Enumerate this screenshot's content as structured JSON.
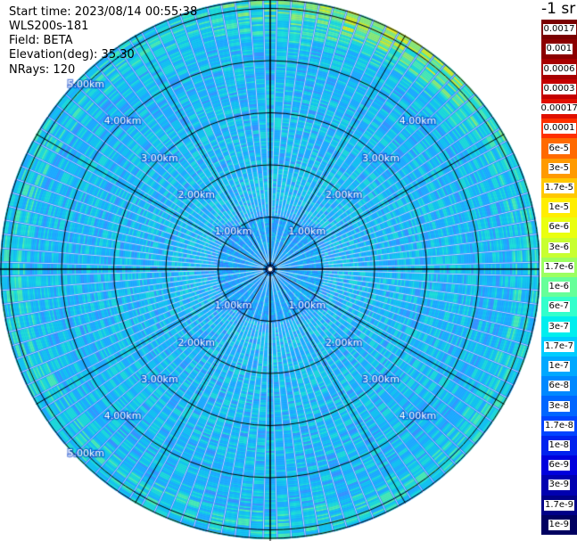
{
  "header": {
    "start_time": "Start time: 2023/08/14 00:55:38",
    "instrument": "WLS200s-181",
    "field": "Field: BETA",
    "elevation": "Elevation(deg): 35.30",
    "nrays": "NRays: 120"
  },
  "colorbar": {
    "title": "-1 sr",
    "labels": [
      "0.0017",
      "0.001",
      "0.0006",
      "0.0003",
      "0.00017",
      "0.0001",
      "6e-5",
      "3e-5",
      "1.7e-5",
      "1e-5",
      "6e-6",
      "3e-6",
      "1.7e-6",
      "1e-6",
      "6e-7",
      "3e-7",
      "1.7e-7",
      "1e-7",
      "6e-8",
      "3e-8",
      "1.7e-8",
      "1e-8",
      "6e-9",
      "3e-9",
      "1.7e-9",
      "1e-9"
    ],
    "colors": [
      "#7a0000",
      "#8c0000",
      "#a80000",
      "#c40000",
      "#e01000",
      "#ff3000",
      "#ff6a00",
      "#ff9a00",
      "#ffc800",
      "#ffee00",
      "#eaff10",
      "#c8ff30",
      "#9cff60",
      "#66ff99",
      "#33ffcc",
      "#00eeee",
      "#00ccff",
      "#00a8ff",
      "#0088ff",
      "#0066ff",
      "#0044ff",
      "#0022ee",
      "#0000dd",
      "#0000b0",
      "#000088",
      "#000060"
    ]
  },
  "chart_data": {
    "type": "heatmap",
    "projection": "polar PPI (plan position indicator)",
    "nrays": 120,
    "range_rings_km": [
      1,
      2,
      3,
      4,
      5
    ],
    "range_ring_labels": [
      "1.00km",
      "2.00km",
      "3.00km",
      "4.00km",
      "5.00km"
    ],
    "azimuth_grid_deg": [
      0,
      30,
      60,
      90,
      120,
      150,
      180,
      210,
      240,
      270,
      300,
      330
    ],
    "value_scale": "log",
    "value_range": [
      1e-09,
      0.0017
    ],
    "description_of_field": "BETA mostly 1e-7 to 3e-7 (blue/cyan) everywhere; higher values ~1e-6 to 3e-6 (green/yellow) at far range toward north-northeast (azimuth ~0-60 deg)"
  }
}
